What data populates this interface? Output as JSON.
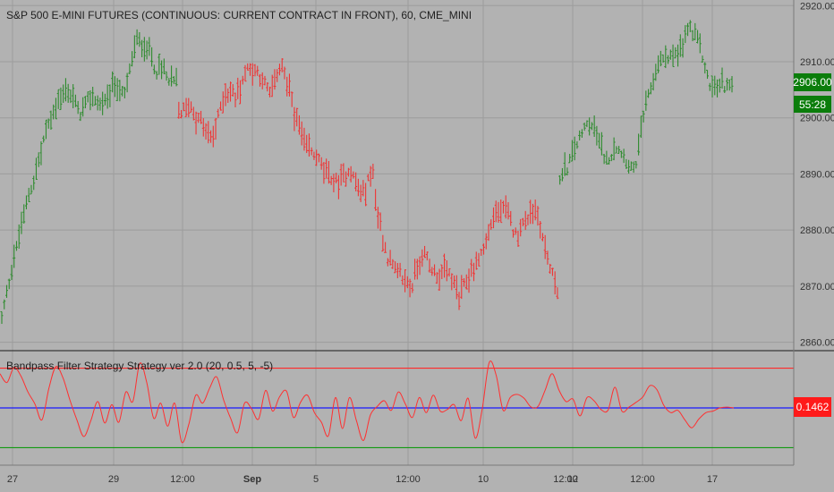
{
  "app": {
    "title": "S&P 500 E-MINI FUTURES (CONTINUOUS: CURRENT CONTRACT IN FRONT), 60, CME_MINI",
    "indicator_title": "Bandpass Filter Strategy Strategy ver 2.0 (20, 0.5, 5, -5)",
    "price_badge": "2906.00",
    "countdown_badge": "55:28",
    "indicator_badge": "0.1462"
  },
  "colors": {
    "background": "#b2b2b2",
    "grid": "#9c9c9c",
    "up_bar": "#2e8b2e",
    "down_bar": "#ef3434",
    "price_badge_bg": "#0b7d0b",
    "indicator_badge_bg": "#ff1a1a",
    "upper_line": "#ff2a2a",
    "zero_line": "#1a1aff",
    "lower_line": "#129a12",
    "osc_line": "#ff3030"
  },
  "chart_data": [
    {
      "type": "ohlc",
      "title": "S&P 500 E-MINI FUTURES (CONTINUOUS: CURRENT CONTRACT IN FRONT), 60, CME_MINI",
      "interval": "60",
      "y_ticks": [
        2860,
        2870,
        2880,
        2890,
        2900,
        2910,
        2920
      ],
      "y_tick_labels": [
        "2860.00",
        "2870.00",
        "2880.00",
        "2890.00",
        "2900.00",
        "2910.00",
        "2920.00"
      ],
      "ylim": [
        2858.5,
        2921
      ],
      "x_tick_labels": [
        "27",
        "29",
        "12:00",
        "Sep",
        "5",
        "12:00",
        "10",
        "12:00",
        "12",
        "12:00",
        "17"
      ],
      "last_price": 2906.0,
      "segments": [
        {
          "color": "up",
          "bars": 60,
          "waypoints": [
            2864,
            2874,
            2883,
            2890,
            2898,
            2903,
            2905,
            2901,
            2904,
            2902,
            2906,
            2904,
            2914,
            2912
          ]
        },
        {
          "color": "up",
          "bars": 12,
          "waypoints": [
            2912,
            2908,
            2909,
            2906,
            2907
          ]
        },
        {
          "color": "down",
          "bars": 80,
          "waypoints": [
            2901,
            2902,
            2899,
            2896,
            2905,
            2904,
            2909,
            2908,
            2904,
            2910,
            2902,
            2895,
            2893,
            2890,
            2888,
            2891,
            2886,
            2891
          ]
        },
        {
          "color": "down",
          "bars": 40,
          "waypoints": [
            2885,
            2875,
            2872,
            2870,
            2876,
            2872,
            2873,
            2868,
            2873
          ]
        },
        {
          "color": "down",
          "bars": 35,
          "waypoints": [
            2873,
            2877,
            2883,
            2884,
            2879,
            2882,
            2884,
            2875,
            2869
          ]
        },
        {
          "color": "up",
          "bars": 35,
          "waypoints": [
            2889,
            2892,
            2896,
            2899,
            2897,
            2892,
            2895,
            2893,
            2890,
            2900
          ]
        },
        {
          "color": "up",
          "bars": 36,
          "waypoints": [
            2902,
            2909,
            2911,
            2911,
            2916,
            2913,
            2905,
            2906,
            2906
          ]
        }
      ]
    },
    {
      "type": "line",
      "title": "Bandpass Filter Strategy Strategy ver 2.0 (20, 0.5, 5, -5)",
      "series": [
        {
          "values": [
            4.3,
            3.2,
            5.1,
            4.0,
            2.0,
            0.5,
            -1.5,
            2.5,
            5.2,
            3.8,
            1.0,
            -1.5,
            -3.6,
            -1.6,
            0.8,
            -1.9,
            0.4,
            -1.8,
            2.0,
            0.8,
            5.6,
            3.2,
            -1.3,
            0.6,
            -2.3,
            0.6,
            -4.3,
            -2.1,
            1.6,
            0.6,
            2.5,
            3.9,
            1.0,
            -1.3,
            -3.1,
            0.6,
            -0.1,
            -1.4,
            2.2,
            -0.4,
            1.4,
            2.1,
            -1.2,
            0.7,
            1.6,
            -0.6,
            -1.8,
            -3.5,
            1.3,
            -2.6,
            1.3,
            -1.6,
            -4.1,
            -0.9,
            0.2,
            0.9,
            -0.3,
            2.0,
            0.5,
            -1.2,
            1.3,
            -0.6,
            1.6,
            -0.4,
            -0.2,
            0.4,
            -1.6,
            1.2,
            -3.8,
            -0.1,
            5.7,
            4.1,
            -0.3,
            1.3,
            1.7,
            1.2,
            0.1,
            0.2,
            2.2,
            4.3,
            2.2,
            0.8,
            1.1,
            -1.0,
            1.3,
            0.9,
            -0.2,
            -0.3,
            2.6,
            -0.4,
            0.1,
            0.7,
            1.4,
            2.8,
            2.3,
            0.3,
            -0.6,
            -0.3,
            -1.5,
            -2.5,
            -1.4,
            -0.6,
            -0.4,
            0.0,
            0.1,
            0.0
          ]
        }
      ],
      "reference_lines": [
        5,
        0,
        -5
      ],
      "last_value": 0.1462
    }
  ]
}
